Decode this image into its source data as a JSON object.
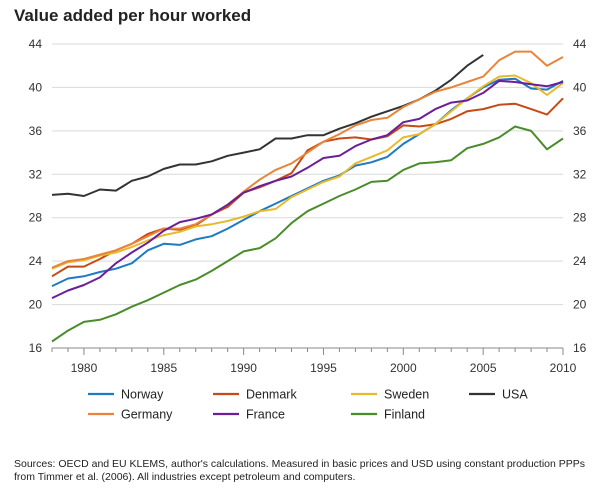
{
  "chart_data": {
    "type": "line",
    "title": "Value added per hour worked",
    "xlabel": "",
    "ylabel": "",
    "xlim": [
      1978,
      2010
    ],
    "ylim": [
      16,
      44
    ],
    "x_ticks": [
      1980,
      1985,
      1990,
      1995,
      2000,
      2005,
      2010
    ],
    "y_ticks": [
      16,
      20,
      24,
      28,
      32,
      36,
      40,
      44
    ],
    "grid": true,
    "legend_position": "bottom",
    "series": [
      {
        "name": "Norway",
        "color": "#1f7ac2",
        "x": [
          1978,
          1979,
          1980,
          1981,
          1982,
          1983,
          1984,
          1985,
          1986,
          1987,
          1988,
          1989,
          1990,
          1991,
          1992,
          1993,
          1994,
          1995,
          1996,
          1997,
          1998,
          1999,
          2000,
          2001,
          2002,
          2003,
          2004,
          2005,
          2006,
          2007,
          2008,
          2009,
          2010
        ],
        "values": [
          21.7,
          22.4,
          22.6,
          23.0,
          23.3,
          23.8,
          25.0,
          25.6,
          25.5,
          26.0,
          26.3,
          27.0,
          27.8,
          28.6,
          29.3,
          30.0,
          30.7,
          31.4,
          31.9,
          32.8,
          33.1,
          33.6,
          34.8,
          35.7,
          36.6,
          37.9,
          39.0,
          40.0,
          40.7,
          40.8,
          39.9,
          39.8,
          40.6
        ]
      },
      {
        "name": "Denmark",
        "color": "#c74a14",
        "x": [
          1978,
          1979,
          1980,
          1981,
          1982,
          1983,
          1984,
          1985,
          1986,
          1987,
          1988,
          1989,
          1990,
          1991,
          1992,
          1993,
          1994,
          1995,
          1996,
          1997,
          1998,
          1999,
          2000,
          2001,
          2002,
          2003,
          2004,
          2005,
          2006,
          2007,
          2008,
          2009,
          2010
        ],
        "values": [
          22.6,
          23.5,
          23.5,
          24.2,
          25.0,
          25.6,
          26.5,
          27.0,
          26.9,
          27.3,
          28.3,
          29.0,
          30.3,
          30.8,
          31.4,
          32.1,
          34.2,
          35.0,
          35.3,
          35.4,
          35.2,
          35.5,
          36.5,
          36.4,
          36.6,
          37.1,
          37.8,
          38.0,
          38.4,
          38.5,
          38.0,
          37.5,
          39.0
        ]
      },
      {
        "name": "Sweden",
        "color": "#e8b92a",
        "x": [
          1978,
          1979,
          1980,
          1981,
          1982,
          1983,
          1984,
          1985,
          1986,
          1987,
          1988,
          1989,
          1990,
          1991,
          1992,
          1993,
          1994,
          1995,
          1996,
          1997,
          1998,
          1999,
          2000,
          2001,
          2002,
          2003,
          2004,
          2005,
          2006,
          2007,
          2008,
          2009,
          2010
        ],
        "values": [
          23.3,
          23.9,
          24.1,
          24.5,
          24.8,
          25.3,
          25.9,
          26.4,
          26.7,
          27.2,
          27.4,
          27.7,
          28.1,
          28.6,
          28.8,
          29.9,
          30.6,
          31.3,
          31.8,
          33.0,
          33.6,
          34.2,
          35.4,
          35.7,
          36.6,
          37.8,
          39.0,
          40.1,
          41.0,
          41.1,
          40.4,
          39.3,
          40.4
        ]
      },
      {
        "name": "USA",
        "color": "#333333",
        "x": [
          1978,
          1979,
          1980,
          1981,
          1982,
          1983,
          1984,
          1985,
          1986,
          1987,
          1988,
          1989,
          1990,
          1991,
          1992,
          1993,
          1994,
          1995,
          1996,
          1997,
          1998,
          1999,
          2000,
          2001,
          2002,
          2003,
          2004,
          2005
        ],
        "values": [
          30.1,
          30.2,
          30.0,
          30.6,
          30.5,
          31.4,
          31.8,
          32.5,
          32.9,
          32.9,
          33.2,
          33.7,
          34.0,
          34.3,
          35.3,
          35.3,
          35.6,
          35.6,
          36.2,
          36.7,
          37.3,
          37.8,
          38.3,
          38.9,
          39.7,
          40.7,
          42.0,
          43.0
        ]
      },
      {
        "name": "Germany",
        "color": "#e8853a",
        "x": [
          1978,
          1979,
          1980,
          1981,
          1982,
          1983,
          1984,
          1985,
          1986,
          1987,
          1988,
          1989,
          1990,
          1991,
          1992,
          1993,
          1994,
          1995,
          1996,
          1997,
          1998,
          1999,
          2000,
          2001,
          2002,
          2003,
          2004,
          2005,
          2006,
          2007,
          2008,
          2009,
          2010
        ],
        "values": [
          23.4,
          24.0,
          24.2,
          24.6,
          25.0,
          25.6,
          26.3,
          27.0,
          27.0,
          27.4,
          28.3,
          29.2,
          30.4,
          31.5,
          32.4,
          33.0,
          34.0,
          35.0,
          35.7,
          36.5,
          37.0,
          37.2,
          38.2,
          38.9,
          39.6,
          40.0,
          40.5,
          41.0,
          42.5,
          43.3,
          43.3,
          42.0,
          42.8
        ]
      },
      {
        "name": "France",
        "color": "#6a1f9a",
        "x": [
          1978,
          1979,
          1980,
          1981,
          1982,
          1983,
          1984,
          1985,
          1986,
          1987,
          1988,
          1989,
          1990,
          1991,
          1992,
          1993,
          1994,
          1995,
          1996,
          1997,
          1998,
          1999,
          2000,
          2001,
          2002,
          2003,
          2004,
          2005,
          2006,
          2007,
          2008,
          2009,
          2010
        ],
        "values": [
          20.6,
          21.3,
          21.8,
          22.5,
          23.8,
          24.8,
          25.7,
          26.8,
          27.6,
          27.9,
          28.3,
          29.2,
          30.3,
          30.9,
          31.4,
          31.8,
          32.6,
          33.5,
          33.7,
          34.6,
          35.2,
          35.6,
          36.8,
          37.1,
          38.0,
          38.6,
          38.8,
          39.5,
          40.6,
          40.5,
          40.3,
          40.1,
          40.5
        ]
      },
      {
        "name": "Finland",
        "color": "#4a8c2a",
        "x": [
          1978,
          1979,
          1980,
          1981,
          1982,
          1983,
          1984,
          1985,
          1986,
          1987,
          1988,
          1989,
          1990,
          1991,
          1992,
          1993,
          1994,
          1995,
          1996,
          1997,
          1998,
          1999,
          2000,
          2001,
          2002,
          2003,
          2004,
          2005,
          2006,
          2007,
          2008,
          2009,
          2010
        ],
        "values": [
          16.6,
          17.6,
          18.4,
          18.6,
          19.1,
          19.8,
          20.4,
          21.1,
          21.8,
          22.3,
          23.1,
          24.0,
          24.9,
          25.2,
          26.1,
          27.5,
          28.6,
          29.3,
          30.0,
          30.6,
          31.3,
          31.4,
          32.4,
          33.0,
          33.1,
          33.3,
          34.4,
          34.8,
          35.4,
          36.4,
          36.0,
          34.3,
          35.3
        ]
      }
    ]
  },
  "source_note": "Sources: OECD and EU KLEMS, author's calculations. Measured in basic prices and USD using constant production PPPs from Timmer et al. (2006). All industries except petroleum and computers."
}
